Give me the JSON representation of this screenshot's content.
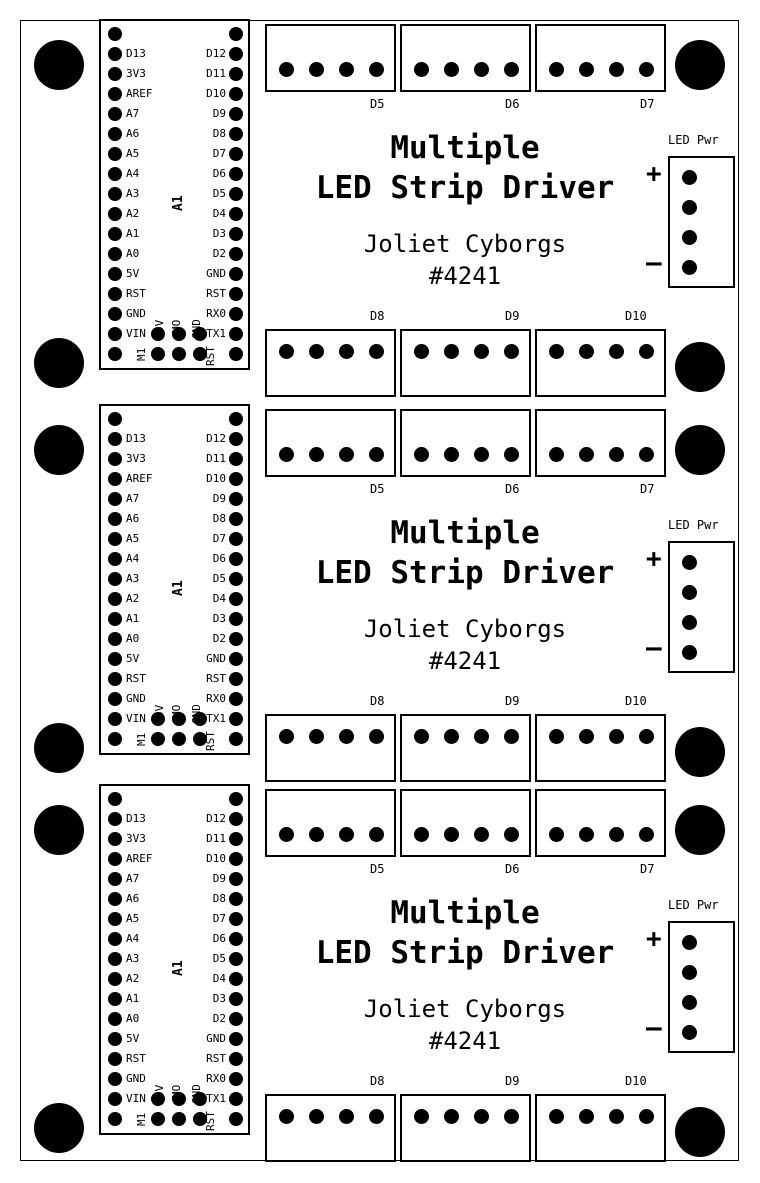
{
  "board": {
    "title_line1": "Multiple",
    "title_line2": "LED Strip Driver",
    "team": "Joliet Cyborgs",
    "number": "#4241",
    "power_label": "LED Pwr",
    "plus_sign": "+",
    "minus_sign": "–",
    "ref_designator": "A1",
    "top_connectors": [
      "D5",
      "D6",
      "D7"
    ],
    "bottom_connectors": [
      "D8",
      "D9",
      "D10"
    ],
    "left_pins": [
      "D13",
      "3V3",
      "AREF",
      "A7",
      "A6",
      "A5",
      "A4",
      "A3",
      "A2",
      "A1",
      "A0",
      "5V",
      "RST",
      "GND",
      "VIN"
    ],
    "right_pins": [
      "D12",
      "D11",
      "D10",
      "D9",
      "D8",
      "D7",
      "D6",
      "D5",
      "D4",
      "D3",
      "D2",
      "GND",
      "RST",
      "RX0",
      "TX1"
    ],
    "bottom_pins": [
      "M1",
      "5V",
      "MO",
      "GND",
      "RST"
    ]
  },
  "panel_count": 3
}
